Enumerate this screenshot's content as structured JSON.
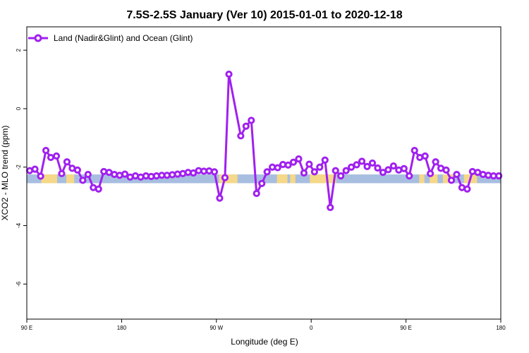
{
  "chart_data": {
    "type": "line",
    "title": "7.5S-2.5S January (Ver 10)   2015-01-01 to 2020-12-18",
    "xlabel": "Longitude (deg E)",
    "ylabel": "XCO2 - MLO trend (ppm)",
    "xlim": [
      90,
      450
    ],
    "ylim": [
      -7.2,
      2.8
    ],
    "x_ticks": [
      {
        "value": 90,
        "label": "90 E"
      },
      {
        "value": 162,
        "label": "180"
      },
      {
        "value": 234,
        "label": "90 W"
      },
      {
        "value": 306,
        "label": "0"
      },
      {
        "value": 378,
        "label": "90 E"
      },
      {
        "value": 450,
        "label": "180"
      }
    ],
    "y_ticks": [
      {
        "value": 2,
        "label": "2"
      },
      {
        "value": 0,
        "label": "0"
      },
      {
        "value": -2,
        "label": "-2"
      },
      {
        "value": -4,
        "label": "-4"
      },
      {
        "value": -6,
        "label": "-6"
      }
    ],
    "legend": {
      "position": "top-left"
    },
    "series": [
      {
        "name": "Land (Nadir&Glint) and Ocean (Glint)",
        "color": "#a020f0",
        "x": [
          92.2,
          96.2,
          100.5,
          104.5,
          108.2,
          112.5,
          116.5,
          120.5,
          124.5,
          128.5,
          132.5,
          136.5,
          140.5,
          144.5,
          148.5,
          152.5,
          156.5,
          160.5,
          164.5,
          168.5,
          172.5,
          176.5,
          180.5,
          184.5,
          188.5,
          192.5,
          196.5,
          200.5,
          204.5,
          208.5,
          212.5,
          216.5,
          220.5,
          224.5,
          228.5,
          232.5,
          236.5,
          240.5,
          243.5,
          252.5,
          256.5,
          260.5,
          264.5,
          268.5,
          272.5,
          276.5,
          280.5,
          284.5,
          288.5,
          292.5,
          296.5,
          300.5,
          304.5,
          308.5,
          312.5,
          316.5,
          320.5,
          324.5,
          328.5,
          332.5,
          336.5,
          340.5,
          344.5,
          348.5,
          352.5,
          356.5,
          360.5,
          364.5,
          368.5,
          372.5,
          376.5,
          380.5,
          384.5,
          388.5,
          392.5,
          396.5,
          400.5,
          404.5,
          408.5,
          412.5,
          416.5,
          420.5,
          424.5,
          428.5,
          432.5,
          436.5,
          440.5,
          444.5,
          448.5
        ],
        "y": [
          -2.12,
          -2.07,
          -2.31,
          -1.43,
          -1.67,
          -1.62,
          -2.22,
          -1.82,
          -2.04,
          -2.1,
          -2.45,
          -2.25,
          -2.7,
          -2.75,
          -2.15,
          -2.18,
          -2.25,
          -2.28,
          -2.24,
          -2.34,
          -2.3,
          -2.34,
          -2.3,
          -2.32,
          -2.3,
          -2.28,
          -2.28,
          -2.26,
          -2.24,
          -2.22,
          -2.18,
          -2.2,
          -2.12,
          -2.14,
          -2.13,
          -2.16,
          -3.06,
          -2.36,
          1.18,
          -0.93,
          -0.6,
          -0.4,
          -2.9,
          -2.56,
          -2.16,
          -2.0,
          -2.02,
          -1.91,
          -1.93,
          -1.83,
          -1.72,
          -2.2,
          -1.9,
          -2.16,
          -2.0,
          -1.76,
          -3.38,
          -2.12,
          -2.3,
          -2.12,
          -2.0,
          -1.92,
          -1.8,
          -1.98,
          -1.86,
          -2.03,
          -2.18,
          -2.09,
          -1.96,
          -2.1,
          -2.05,
          -2.3,
          -1.43,
          -1.67,
          -1.62,
          -2.22,
          -1.82,
          -2.04,
          -2.1,
          -2.45,
          -2.25,
          -2.7,
          -2.75,
          -2.15,
          -2.18,
          -2.25,
          -2.28,
          -2.3,
          -2.3
        ]
      }
    ],
    "surface_band": {
      "y_top": -2.25,
      "y_bottom": -2.55,
      "ocean_color": "#a8bee0",
      "land_color": "#f5d888",
      "land_ranges": [
        [
          101,
          113
        ],
        [
          120,
          126
        ],
        [
          236,
          250
        ],
        [
          280,
          288
        ],
        [
          290,
          294
        ],
        [
          305,
          325
        ],
        [
          388,
          392
        ],
        [
          396,
          402
        ],
        [
          406,
          414
        ],
        [
          422,
          432
        ]
      ]
    }
  }
}
